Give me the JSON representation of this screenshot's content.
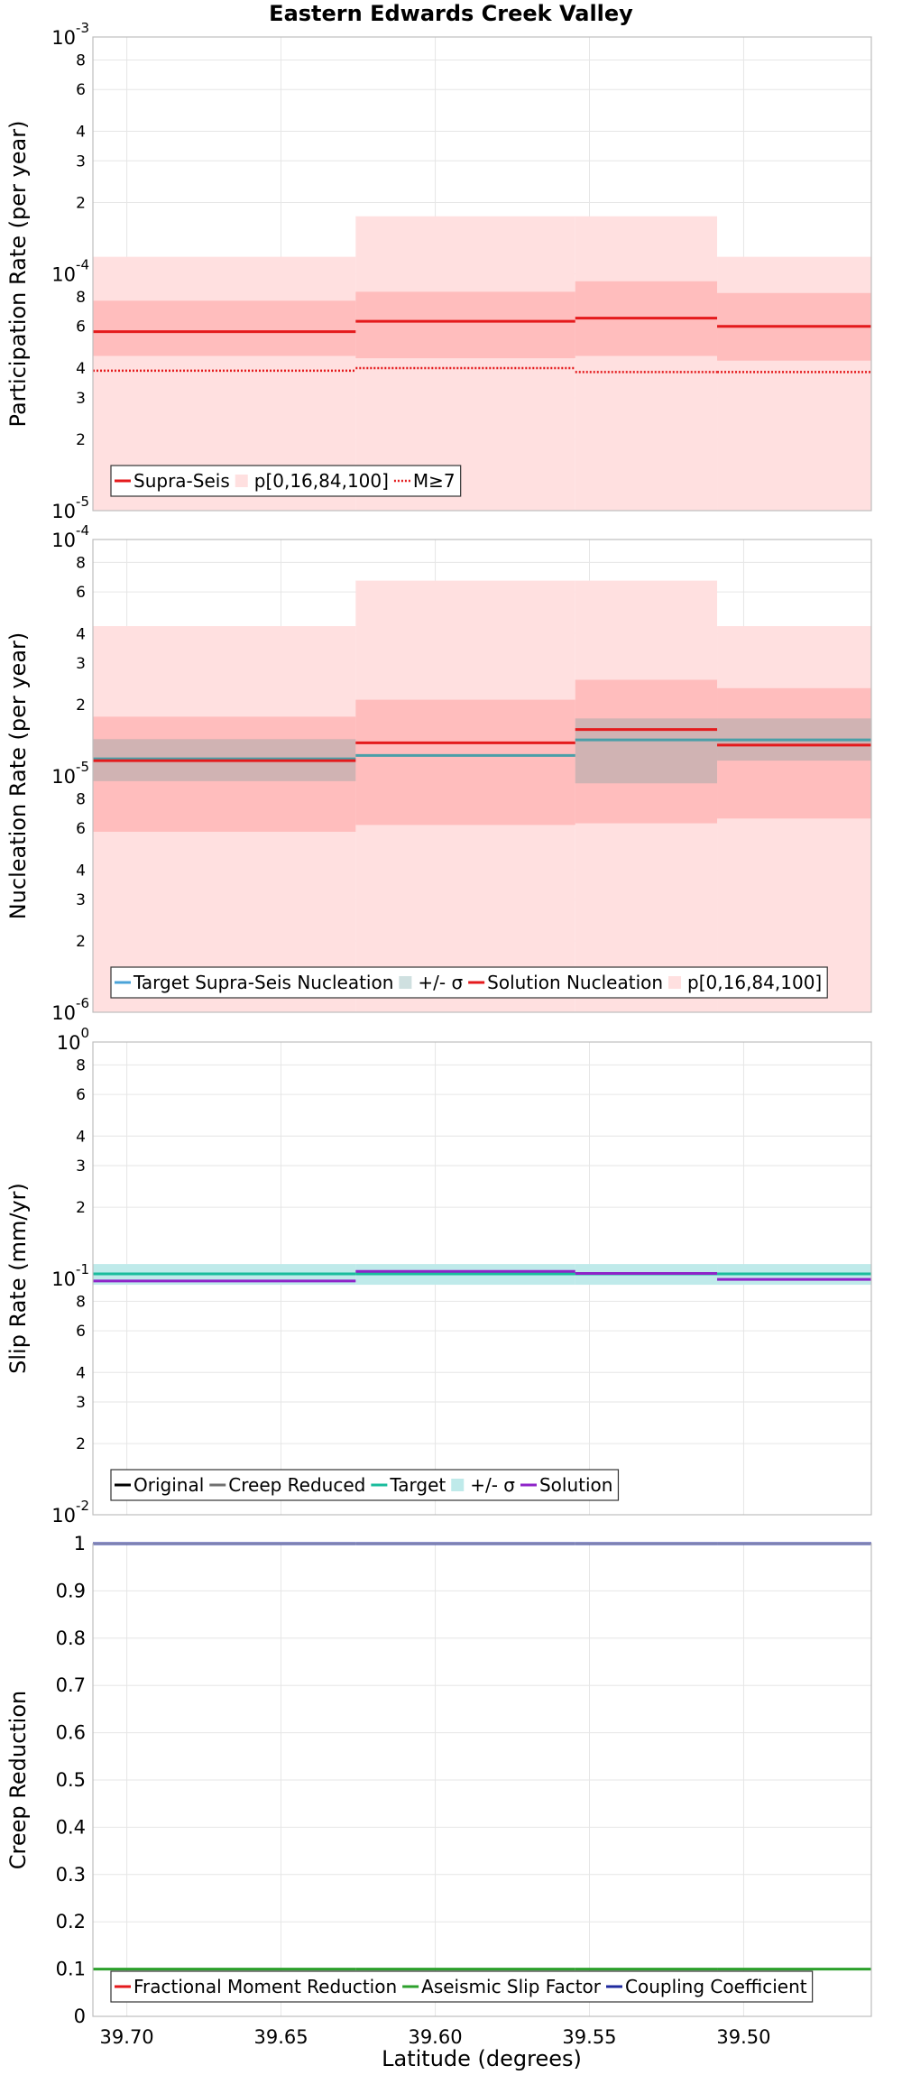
{
  "chart_data": {
    "title": "Eastern Edwards Creek Valley",
    "xlabel": "Latitude (degrees)",
    "x_axis": {
      "reversed": true,
      "xlim": [
        39.711,
        39.4586
      ],
      "ticks": [
        39.7,
        39.65,
        39.6,
        39.55,
        39.5
      ],
      "tick_labels": [
        "39.70",
        "39.65",
        "39.60",
        "39.55",
        "39.50"
      ],
      "grid": true
    },
    "segment_bounds": [
      39.711,
      39.6258,
      39.5546,
      39.5086,
      39.4586
    ],
    "panels": [
      {
        "type": "line",
        "ylabel": "Participation Rate (per year)",
        "y_scale": "log",
        "ylim": [
          1e-05,
          0.001
        ],
        "major_ticks": [
          {
            "base": "10",
            "exp": "-5",
            "value": 1e-05
          },
          {
            "base": "10",
            "exp": "-4",
            "value": 0.0001
          },
          {
            "base": "10",
            "exp": "-3",
            "value": 0.001
          }
        ],
        "minor_ticks": [
          {
            "label": "2",
            "value": 2e-05
          },
          {
            "label": "3",
            "value": 3e-05
          },
          {
            "label": "4",
            "value": 4e-05
          },
          {
            "label": "6",
            "value": 6e-05
          },
          {
            "label": "8",
            "value": 8e-05
          },
          {
            "label": "2",
            "value": 0.0002
          },
          {
            "label": "3",
            "value": 0.0003
          },
          {
            "label": "4",
            "value": 0.0004
          },
          {
            "label": "6",
            "value": 0.0006
          },
          {
            "label": "8",
            "value": 0.0008
          }
        ],
        "bands": [
          {
            "name": "p[0,16,84,100]",
            "color": "#ffe0e0",
            "values": [
              [
                1e-05,
                0.000118
              ],
              [
                1e-05,
                0.000175
              ],
              [
                1e-05,
                0.000175
              ],
              [
                1e-05,
                0.000118
              ]
            ]
          },
          {
            "name": "p[0,16,84,100]",
            "color": "#ffbdbd",
            "values": [
              [
                4.5e-05,
                7.7e-05
              ],
              [
                4.4e-05,
                8.4e-05
              ],
              [
                4.5e-05,
                9.3e-05
              ],
              [
                4.3e-05,
                8.3e-05
              ]
            ]
          }
        ],
        "series": [
          {
            "name": "Supra-Seis",
            "color": "#e41a1c",
            "style": "solid",
            "values": [
              5.7e-05,
              6.3e-05,
              6.5e-05,
              6e-05
            ]
          },
          {
            "name": "M≥7",
            "color": "#e41a1c",
            "style": "dotted",
            "values": [
              3.9e-05,
              4e-05,
              3.85e-05,
              3.85e-05
            ]
          }
        ],
        "legend": {
          "placement": "bottom-left",
          "items": [
            {
              "label": "Supra-Seis",
              "kind": "line",
              "color": "#e41a1c",
              "style": "solid"
            },
            {
              "label": "p[0,16,84,100]",
              "kind": "patch",
              "color": "#ffe0e0"
            },
            {
              "label": "M≥7",
              "kind": "line",
              "color": "#e41a1c",
              "style": "dotted"
            }
          ]
        }
      },
      {
        "type": "line",
        "ylabel": "Nucleation Rate (per year)",
        "y_scale": "log",
        "ylim": [
          1e-06,
          0.0001
        ],
        "major_ticks": [
          {
            "base": "10",
            "exp": "-6",
            "value": 1e-06
          },
          {
            "base": "10",
            "exp": "-5",
            "value": 1e-05
          },
          {
            "base": "10",
            "exp": "-4",
            "value": 0.0001
          }
        ],
        "minor_ticks": [
          {
            "label": "2",
            "value": 2e-06
          },
          {
            "label": "3",
            "value": 3e-06
          },
          {
            "label": "4",
            "value": 4e-06
          },
          {
            "label": "6",
            "value": 6e-06
          },
          {
            "label": "8",
            "value": 8e-06
          },
          {
            "label": "2",
            "value": 2e-05
          },
          {
            "label": "3",
            "value": 3e-05
          },
          {
            "label": "4",
            "value": 4e-05
          },
          {
            "label": "6",
            "value": 6e-05
          },
          {
            "label": "8",
            "value": 8e-05
          }
        ],
        "bands": [
          {
            "name": "p[0,16,84,100]",
            "color": "#ffe0e0",
            "values": [
              [
                1e-06,
                4.3e-05
              ],
              [
                1e-06,
                6.7e-05
              ],
              [
                1e-06,
                6.7e-05
              ],
              [
                1e-06,
                4.3e-05
              ]
            ]
          },
          {
            "name": "p[0,16,84,100]",
            "color": "#ffbdbd",
            "values": [
              [
                5.8e-06,
                1.78e-05
              ],
              [
                6.2e-06,
                2.1e-05
              ],
              [
                6.3e-06,
                2.55e-05
              ],
              [
                6.6e-06,
                2.35e-05
              ]
            ]
          },
          {
            "name": "+/- σ",
            "color": "rgba(120,160,160,0.35)",
            "values": [
              [
                9.5e-06,
                1.43e-05
              ],
              [
                1.18e-05,
                1.18e-05
              ],
              [
                9.3e-06,
                1.75e-05
              ],
              [
                1.16e-05,
                1.75e-05
              ]
            ]
          }
        ],
        "series": [
          {
            "name": "Target Supra-Seis Nucleation",
            "color": "#4a9fa8",
            "style": "solid",
            "values": [
              1.18e-05,
              1.22e-05,
              1.42e-05,
              1.42e-05
            ]
          },
          {
            "name": "Solution Nucleation",
            "color": "#e41a1c",
            "style": "solid",
            "values": [
              1.16e-05,
              1.38e-05,
              1.57e-05,
              1.35e-05
            ]
          }
        ],
        "legend": {
          "placement": "bottom-left",
          "items": [
            {
              "label": "Target Supra-Seis Nucleation",
              "kind": "line",
              "color": "#4aa3d8",
              "style": "solid"
            },
            {
              "label": "+/- σ",
              "kind": "patch",
              "color": "#cfe0e0"
            },
            {
              "label": "Solution Nucleation",
              "kind": "line",
              "color": "#e41a1c",
              "style": "solid"
            },
            {
              "label": "p[0,16,84,100]",
              "kind": "patch",
              "color": "#ffe0e0"
            }
          ]
        }
      },
      {
        "type": "line",
        "ylabel": "Slip Rate (mm/yr)",
        "y_scale": "log",
        "ylim": [
          0.01,
          1
        ],
        "major_ticks": [
          {
            "base": "10",
            "exp": "-2",
            "value": 0.01
          },
          {
            "base": "10",
            "exp": "-1",
            "value": 0.1
          },
          {
            "base": "10",
            "exp": "0",
            "value": 1
          }
        ],
        "minor_ticks": [
          {
            "label": "2",
            "value": 0.02
          },
          {
            "label": "3",
            "value": 0.03
          },
          {
            "label": "4",
            "value": 0.04
          },
          {
            "label": "6",
            "value": 0.06
          },
          {
            "label": "8",
            "value": 0.08
          },
          {
            "label": "2",
            "value": 0.2
          },
          {
            "label": "3",
            "value": 0.3
          },
          {
            "label": "4",
            "value": 0.4
          },
          {
            "label": "6",
            "value": 0.6
          },
          {
            "label": "8",
            "value": 0.8
          }
        ],
        "bands": [
          {
            "name": "+/- σ",
            "color": "#bfeaea",
            "values": [
              [
                0.094,
                0.115
              ],
              [
                0.094,
                0.115
              ],
              [
                0.094,
                0.115
              ],
              [
                0.094,
                0.115
              ]
            ]
          }
        ],
        "series": [
          {
            "name": "Target",
            "color": "#1abc9c",
            "style": "solid",
            "values": [
              0.1045,
              0.1045,
              0.1045,
              0.1045
            ]
          },
          {
            "name": "Solution",
            "color": "#8e24c8",
            "style": "solid",
            "values": [
              0.0975,
              0.107,
              0.105,
              0.099
            ]
          }
        ],
        "legend": {
          "placement": "bottom-left",
          "items": [
            {
              "label": "Original",
              "kind": "line",
              "color": "#000000",
              "style": "solid"
            },
            {
              "label": "Creep Reduced",
              "kind": "line",
              "color": "#707070",
              "style": "solid"
            },
            {
              "label": "Target",
              "kind": "line",
              "color": "#1abc9c",
              "style": "solid"
            },
            {
              "label": "+/- σ",
              "kind": "patch",
              "color": "#bfeaea"
            },
            {
              "label": "Solution",
              "kind": "line",
              "color": "#8e24c8",
              "style": "solid"
            }
          ]
        }
      },
      {
        "type": "line",
        "ylabel": "Creep Reduction",
        "y_scale": "linear",
        "ylim": [
          0,
          1
        ],
        "ticks": [
          0,
          0.1,
          0.2,
          0.3,
          0.4,
          0.5,
          0.6,
          0.7,
          0.8,
          0.9,
          1
        ],
        "tick_labels": [
          "0",
          "0.1",
          "0.2",
          "0.3",
          "0.4",
          "0.5",
          "0.6",
          "0.7",
          "0.8",
          "0.9",
          "1"
        ],
        "bands": [],
        "series": [
          {
            "name": "Aseismic Slip Factor",
            "color": "#2ca02c",
            "style": "solid",
            "values": [
              0.1,
              0.1,
              0.1,
              0.1
            ]
          },
          {
            "name": "Coupling Coefficient",
            "color": "#1f2a9e",
            "style": "solid",
            "values": [
              1,
              1,
              1,
              1
            ]
          }
        ],
        "legend": {
          "placement": "bottom-left",
          "items": [
            {
              "label": "Fractional Moment Reduction",
              "kind": "line",
              "color": "#e41a1c",
              "style": "solid"
            },
            {
              "label": "Aseismic Slip Factor",
              "kind": "line",
              "color": "#2ca02c",
              "style": "solid"
            },
            {
              "label": "Coupling Coefficient",
              "kind": "line",
              "color": "#1f2a9e",
              "style": "solid"
            }
          ]
        }
      }
    ]
  }
}
